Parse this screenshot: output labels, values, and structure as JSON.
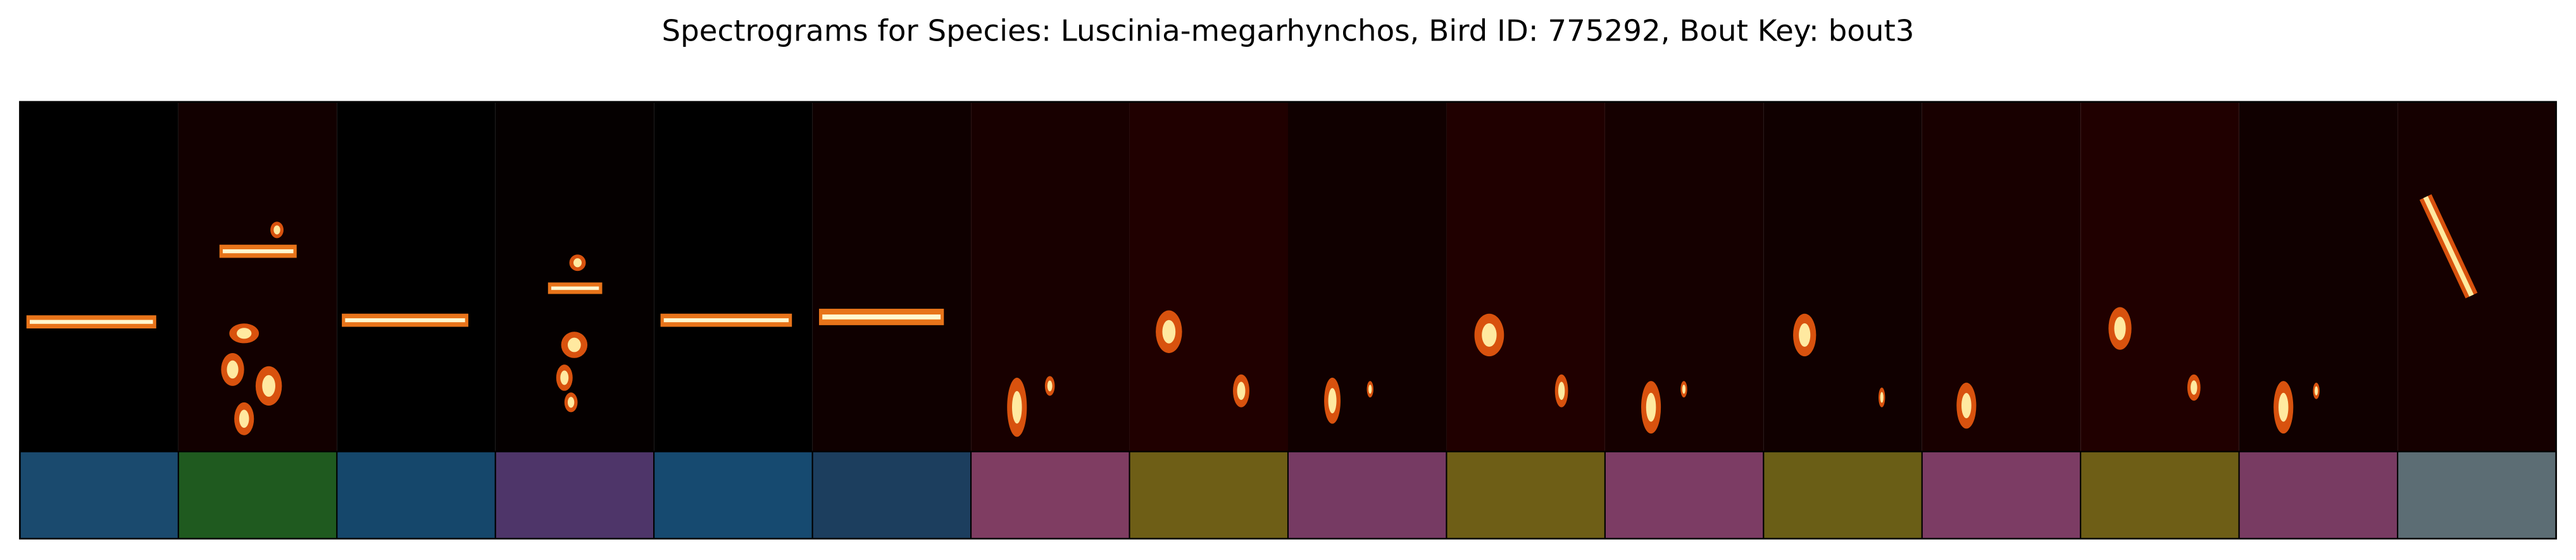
{
  "title": "Spectrograms for Species: Luscinia-megarhynchos, Bird ID: 775292, Bout Key: bout3",
  "segments": [
    {
      "background": "#000000",
      "label_color": "#1a4a6e"
    },
    {
      "background": "#120000",
      "label_color": "#1f5a1f"
    },
    {
      "background": "#000000",
      "label_color": "#15476b"
    },
    {
      "background": "#050000",
      "label_color": "#4e3569"
    },
    {
      "background": "#000000",
      "label_color": "#164a70"
    },
    {
      "background": "#0f0000",
      "label_color": "#1c3e5e"
    },
    {
      "background": "#180000",
      "label_color": "#7f3d62"
    },
    {
      "background": "#200000",
      "label_color": "#6e5e16"
    },
    {
      "background": "#100000",
      "label_color": "#763a63"
    },
    {
      "background": "#200000",
      "label_color": "#6e5e16"
    },
    {
      "background": "#150000",
      "label_color": "#7c3c64"
    },
    {
      "background": "#100000",
      "label_color": "#6a5e16"
    },
    {
      "background": "#180000",
      "label_color": "#7c3c64"
    },
    {
      "background": "#200000",
      "label_color": "#6e5e16"
    },
    {
      "background": "#100000",
      "label_color": "#783b62"
    },
    {
      "background": "#150000",
      "label_color": "#5c6d74"
    }
  ]
}
